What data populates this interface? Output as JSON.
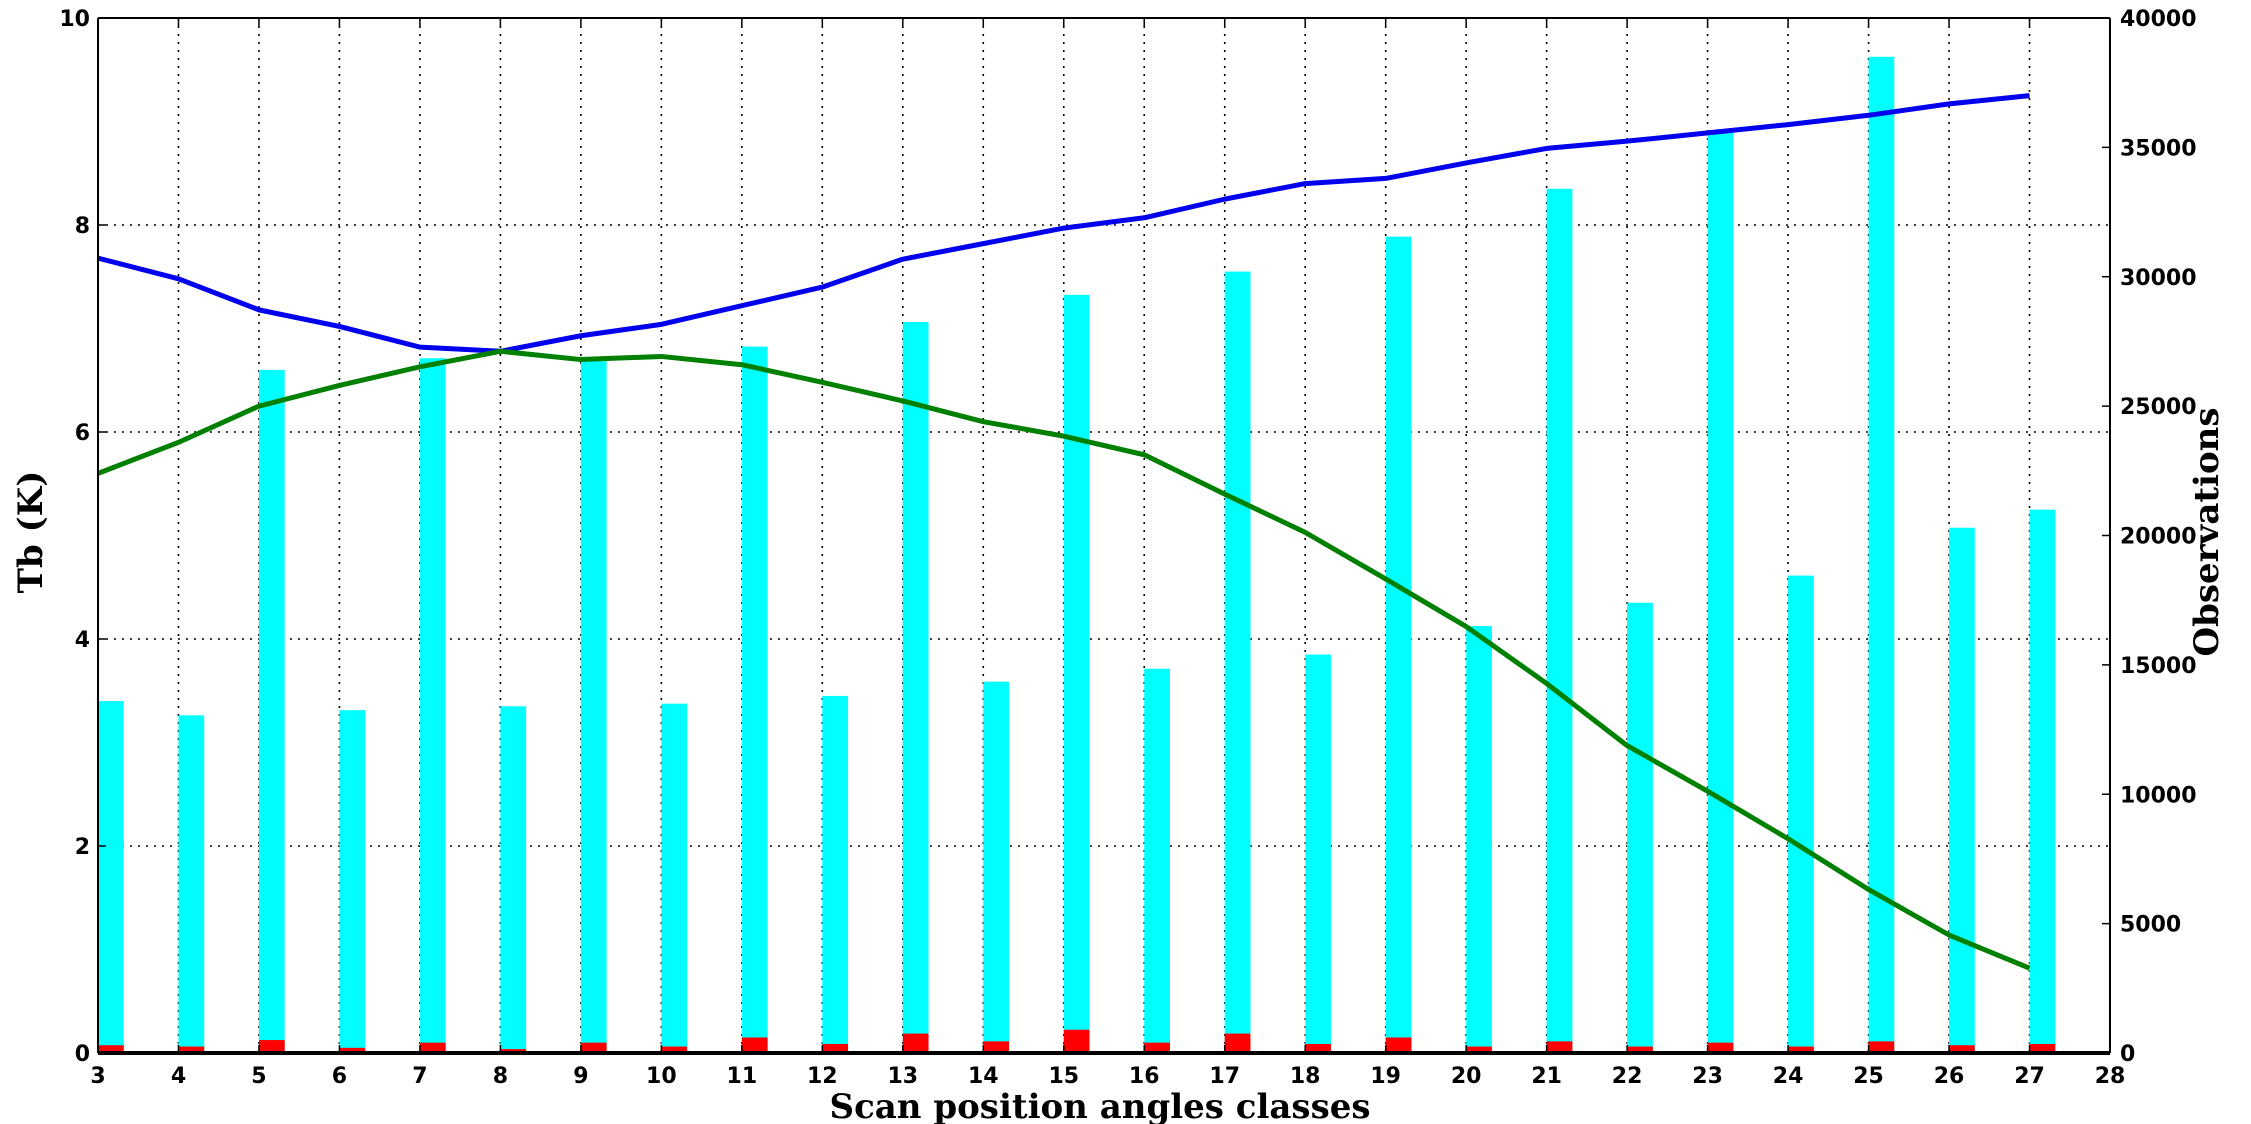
{
  "chart_data": {
    "type": "bar",
    "xlabel": "Scan position angles classes",
    "ylabel": "Tb (K)",
    "y2label": "Observations",
    "xlim": [
      3,
      28
    ],
    "ylim": [
      0,
      10
    ],
    "y2lim": [
      0,
      40000
    ],
    "grid": true,
    "x_ticks": [
      3,
      4,
      5,
      6,
      7,
      8,
      9,
      10,
      11,
      12,
      13,
      14,
      15,
      16,
      17,
      18,
      19,
      20,
      21,
      22,
      23,
      24,
      25,
      26,
      27,
      28
    ],
    "y_ticks": [
      0,
      2,
      4,
      6,
      8,
      10
    ],
    "y2_ticks": [
      0,
      5000,
      10000,
      15000,
      20000,
      25000,
      30000,
      35000,
      40000
    ],
    "categories": [
      3,
      4,
      5,
      6,
      7,
      8,
      9,
      10,
      11,
      12,
      13,
      14,
      15,
      16,
      17,
      18,
      19,
      20,
      21,
      22,
      23,
      24,
      25,
      26,
      27
    ],
    "bar_series": [
      {
        "color": "#00ffff",
        "axis": "right",
        "values": [
          13600,
          13050,
          26400,
          13250,
          26850,
          13400,
          26800,
          13500,
          27300,
          13800,
          28250,
          14350,
          29300,
          14850,
          30200,
          15400,
          31550,
          16500,
          33400,
          17400,
          35600,
          18450,
          38500,
          20300,
          21000
        ]
      },
      {
        "color": "#ff0000",
        "axis": "right",
        "values": [
          300,
          250,
          500,
          200,
          400,
          150,
          400,
          250,
          600,
          350,
          750,
          450,
          900,
          400,
          750,
          350,
          600,
          250,
          450,
          250,
          400,
          250,
          450,
          300,
          350
        ]
      }
    ],
    "line_series": [
      {
        "color": "#0000ee",
        "axis": "left",
        "values": [
          7.68,
          7.48,
          7.18,
          7.02,
          6.82,
          6.78,
          6.93,
          7.04,
          7.22,
          7.4,
          7.67,
          7.82,
          7.97,
          8.07,
          8.25,
          8.4,
          8.45,
          8.6,
          8.74,
          8.81,
          8.89,
          8.97,
          9.06,
          9.17,
          9.25
        ]
      },
      {
        "color": "#008000",
        "axis": "left",
        "values": [
          5.6,
          5.9,
          6.25,
          6.45,
          6.63,
          6.78,
          6.7,
          6.73,
          6.65,
          6.48,
          6.3,
          6.1,
          5.96,
          5.78,
          5.4,
          5.03,
          4.58,
          4.12,
          3.57,
          2.97,
          2.53,
          2.07,
          1.58,
          1.14,
          0.82
        ]
      }
    ]
  }
}
